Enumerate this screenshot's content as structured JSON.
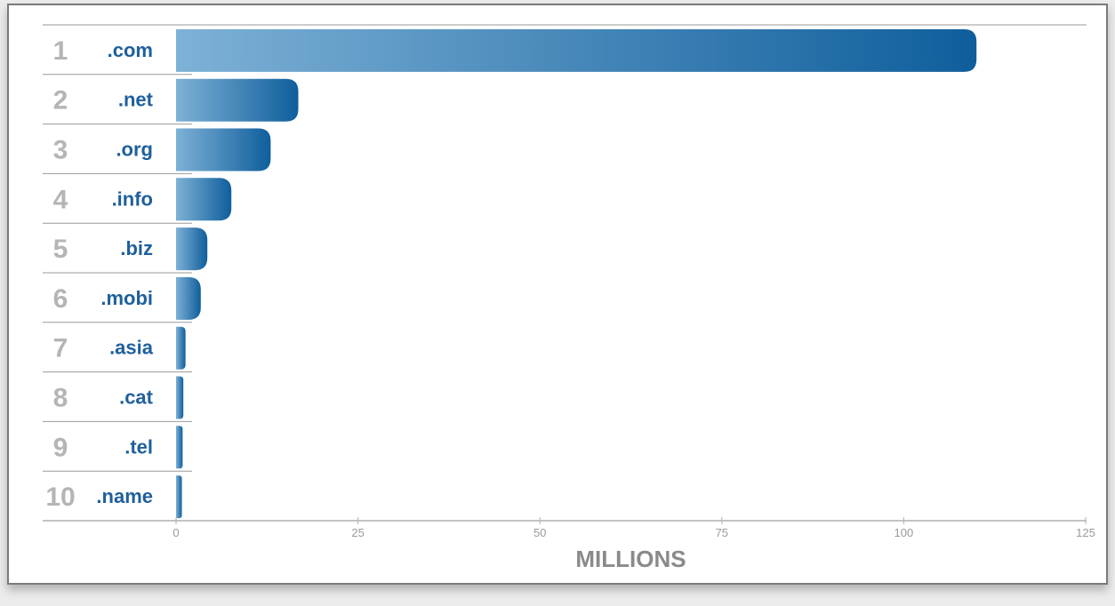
{
  "colors": {
    "bar_dark": "#0f5e9c",
    "bar_light": "#7eb1d6",
    "category_text": "#1f5f9c",
    "rank_text": "#b5b5b5",
    "axis_text": "#8a8a8a"
  },
  "chart_data": {
    "type": "bar",
    "orientation": "horizontal",
    "ranks": [
      "1",
      "2",
      "3",
      "4",
      "5",
      "6",
      "7",
      "8",
      "9",
      "10"
    ],
    "categories": [
      ".com",
      ".net",
      ".org",
      ".info",
      ".biz",
      ".mobi",
      ".asia",
      ".cat",
      ".tel",
      ".name"
    ],
    "values": [
      110,
      16.8,
      13,
      7.6,
      4.3,
      3.4,
      1.3,
      1.0,
      0.9,
      0.8
    ],
    "xlabel": "MILLIONS",
    "xlim": [
      0,
      125
    ],
    "xticks": [
      0,
      25,
      50,
      75,
      100,
      125
    ],
    "xtick_labels": [
      "0",
      "25",
      "50",
      "75",
      "100",
      "125"
    ],
    "grid": false,
    "legend": "none"
  }
}
